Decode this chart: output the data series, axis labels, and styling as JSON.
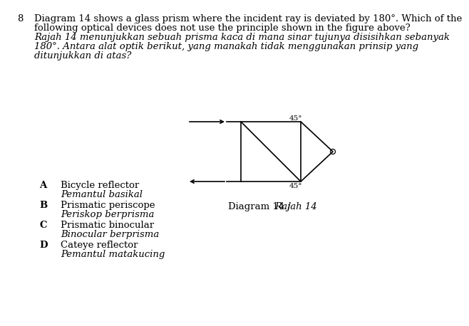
{
  "question_number": "8",
  "question_text_en_1": "Diagram 14 shows a glass prism where the incident ray is deviated by 180°. Which of the",
  "question_text_en_2": "following optical devices does not use the principle shown in the figure above?",
  "question_text_ms_1": "Rajah 14 menunjukkan sebuah prisma kaca di mana sinar tujunya disisihkan sebanyak",
  "question_text_ms_2": "180°. Antara alat optik berikut, yang manakah tidak menggunakan prinsip yang",
  "question_text_ms_3": "ditunjukkan di atas?",
  "diagram_label_en": "Diagram 14 / ",
  "diagram_label_ms": "Rajah 14",
  "angle_label": "45°",
  "options": [
    {
      "letter": "A",
      "text_en": "Bicycle reflector",
      "text_ms": "Pemantul basikal"
    },
    {
      "letter": "B",
      "text_en": "Prismatic periscope",
      "text_ms": "Periskop berprisma"
    },
    {
      "letter": "C",
      "text_en": "Prismatic binocular",
      "text_ms": "Binocular berprisma"
    },
    {
      "letter": "D",
      "text_en": "Cateye reflector",
      "text_ms": "Pemantul matakucing"
    }
  ],
  "bg_color": "#ffffff",
  "line_color": "#000000",
  "font_size_q": 9.5,
  "font_size_opt": 9.5,
  "font_size_angle": 7.5
}
